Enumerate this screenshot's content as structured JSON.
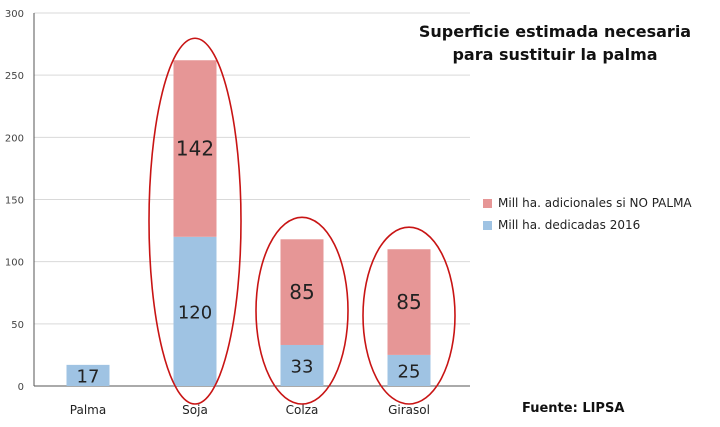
{
  "title_line1": "Superficie estimada necesaria",
  "title_line2": "para sustituir la palma",
  "source": "Fuente: LIPSA",
  "colors": {
    "base": "#9fc3e3",
    "additional": "#e69696",
    "ellipse": "#c81414",
    "grid": "#d9d9d9",
    "axis": "#555555"
  },
  "chart_data": {
    "type": "bar",
    "stacked": true,
    "categories": [
      "Palma",
      "Soja",
      "Colza",
      "Girasol"
    ],
    "series": [
      {
        "name": "Mill ha. dedicadas 2016",
        "values": [
          17,
          120,
          33,
          25
        ],
        "labels": [
          "17",
          "120",
          "33",
          "25"
        ]
      },
      {
        "name": "Mill ha. adicionales si NO PALMA",
        "values": [
          null,
          142,
          85,
          85
        ],
        "labels": [
          "",
          "142",
          "85",
          "85"
        ]
      }
    ],
    "ylim": [
      0,
      300
    ],
    "yticks": [
      0,
      50,
      100,
      150,
      200,
      250,
      300
    ],
    "grid": true,
    "legend_position": "right",
    "highlighted_categories": [
      "Soja",
      "Colza",
      "Girasol"
    ]
  }
}
